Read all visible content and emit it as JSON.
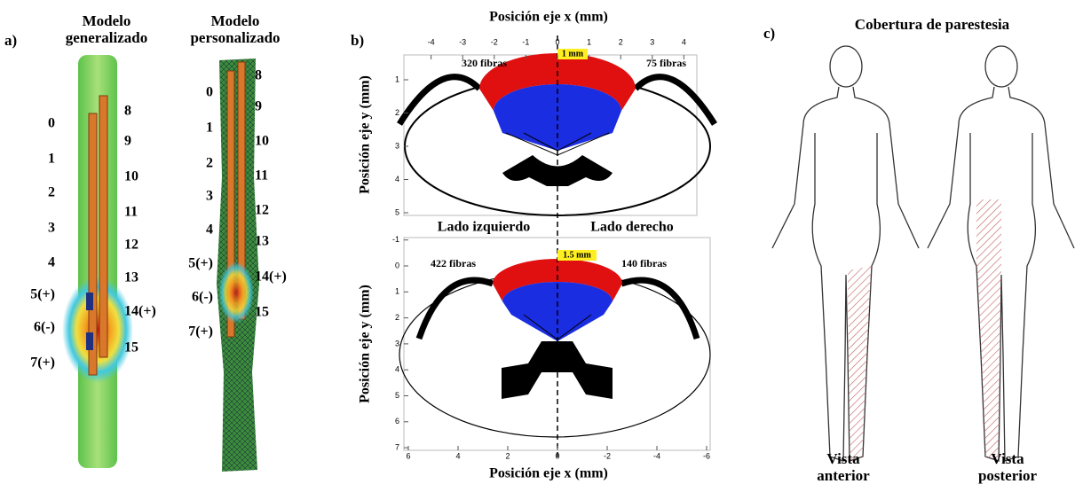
{
  "panel_a": {
    "label": "a)",
    "models": [
      {
        "title": "Modelo generalizado",
        "left_contacts": [
          "0",
          "1",
          "2",
          "3",
          "4",
          "5(+)",
          "6(-)",
          "7(+)"
        ],
        "right_contacts": [
          "8",
          "9",
          "10",
          "11",
          "12",
          "13",
          "14(+)",
          "15"
        ]
      },
      {
        "title": "Modelo personalizado",
        "left_contacts": [
          "0",
          "1",
          "2",
          "3",
          "4",
          "5(+)",
          "6(-)",
          "7(+)"
        ],
        "right_contacts": [
          "8",
          "9",
          "10",
          "11",
          "12",
          "13",
          "14(+)",
          "15"
        ]
      }
    ]
  },
  "panel_b": {
    "label": "b)",
    "x_axis_label_top": "Posición eje x (mm)",
    "x_axis_label_bottom": "Posición eje x (mm)",
    "plots": [
      {
        "y_axis_label": "Posición eje y (mm)",
        "xticks": [
          -4,
          -3,
          -2,
          -1,
          0,
          1,
          2,
          3,
          4
        ],
        "yticks": [
          1,
          2,
          3,
          4,
          5
        ],
        "left_fibers": "320 fibras",
        "right_fibers": "75 fibras",
        "scale": "1 mm"
      },
      {
        "y_axis_label": "Posición eje y (mm)",
        "xticks": [
          6,
          4,
          2,
          0,
          -2,
          -4,
          -6
        ],
        "yticks": [
          -1,
          0,
          1,
          2,
          3,
          4,
          5,
          6,
          7
        ],
        "left_fibers": "422 fibras",
        "right_fibers": "140 fibras",
        "scale": "1.5 mm"
      }
    ],
    "left_side": "Lado izquierdo",
    "right_side": "Lado derecho"
  },
  "panel_c": {
    "label": "c)",
    "title": "Cobertura de parestesia",
    "views": [
      "Vista anterior",
      "Vista posterior"
    ]
  }
}
